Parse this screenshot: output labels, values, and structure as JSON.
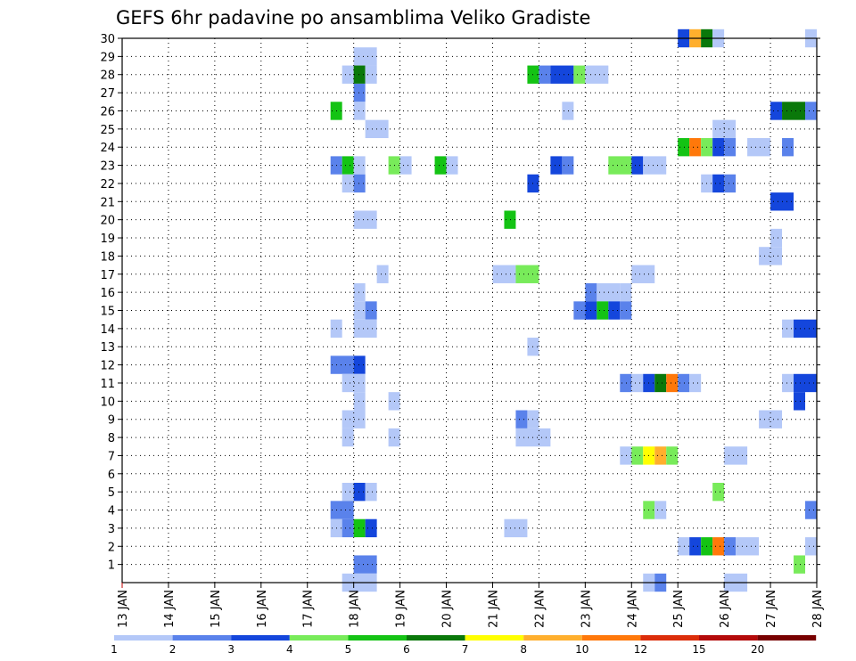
{
  "chart_data": {
    "type": "heatmap",
    "title": "GEFS 6hr padavine po ansamblima Veliko Gradiste",
    "x_tick_labels": [
      "13 JAN",
      "14 JAN",
      "15 JAN",
      "16 JAN",
      "17 JAN",
      "18 JAN",
      "19 JAN",
      "20 JAN",
      "21 JAN",
      "22 JAN",
      "23 JAN",
      "24 JAN",
      "25 JAN",
      "26 JAN",
      "27 JAN",
      "28 JAN"
    ],
    "x_range_days": [
      13,
      28
    ],
    "y_tick_labels": [
      "1",
      "2",
      "3",
      "4",
      "5",
      "6",
      "7",
      "8",
      "9",
      "10",
      "11",
      "12",
      "13",
      "14",
      "15",
      "16",
      "17",
      "18",
      "19",
      "20",
      "21",
      "22",
      "23",
      "24",
      "25",
      "26",
      "27",
      "28",
      "29",
      "30"
    ],
    "y_range_members": [
      0,
      30
    ],
    "grid": "dotted",
    "legend": {
      "placement": "bottom",
      "labels": [
        "1",
        "2",
        "3",
        "4",
        "5",
        "6",
        "7",
        "8",
        "10",
        "12",
        "15",
        "20"
      ],
      "colors": [
        "#b4c8f8",
        "#5a82eb",
        "#1446dc",
        "#78eb5a",
        "#14c314",
        "#0a780a",
        "#ffff00",
        "#ffaf2d",
        "#ff780a",
        "#dc2d0a",
        "#b40a0a",
        "#780000"
      ]
    },
    "cell_value_note": "each cell: [member_row, x_day_start, x_day_end, color_class 0-11]",
    "cells": [
      [
        30,
        25.0,
        25.25,
        2
      ],
      [
        30,
        25.25,
        25.5,
        7
      ],
      [
        30,
        25.5,
        25.75,
        5
      ],
      [
        30,
        25.75,
        26.0,
        0
      ],
      [
        30,
        27.75,
        28.0,
        0
      ],
      [
        29,
        18.0,
        18.5,
        0
      ],
      [
        28,
        17.75,
        18.0,
        0
      ],
      [
        28,
        18.0,
        18.25,
        5
      ],
      [
        28,
        18.25,
        18.5,
        0
      ],
      [
        28,
        21.75,
        22.0,
        4
      ],
      [
        28,
        22.0,
        22.25,
        1
      ],
      [
        28,
        22.25,
        22.75,
        2
      ],
      [
        28,
        22.75,
        23.0,
        3
      ],
      [
        28,
        23.0,
        23.5,
        0
      ],
      [
        27,
        18.0,
        18.25,
        1
      ],
      [
        26,
        17.5,
        17.75,
        4
      ],
      [
        26,
        18.0,
        18.25,
        0
      ],
      [
        26,
        22.5,
        22.75,
        0
      ],
      [
        26,
        27.0,
        27.25,
        2
      ],
      [
        26,
        27.25,
        27.75,
        5
      ],
      [
        26,
        27.75,
        28.0,
        1
      ],
      [
        25,
        18.25,
        18.75,
        0
      ],
      [
        25,
        25.75,
        26.25,
        0
      ],
      [
        24,
        25.0,
        25.25,
        4
      ],
      [
        24,
        25.25,
        25.5,
        8
      ],
      [
        24,
        25.5,
        25.75,
        3
      ],
      [
        24,
        25.75,
        26.0,
        2
      ],
      [
        24,
        26.0,
        26.25,
        1
      ],
      [
        24,
        26.5,
        27.0,
        0
      ],
      [
        24,
        27.25,
        27.5,
        1
      ],
      [
        23,
        17.5,
        17.75,
        1
      ],
      [
        23,
        17.75,
        18.0,
        4
      ],
      [
        23,
        18.0,
        18.25,
        0
      ],
      [
        23,
        18.75,
        19.0,
        3
      ],
      [
        23,
        19.0,
        19.25,
        0
      ],
      [
        23,
        19.75,
        20.0,
        4
      ],
      [
        23,
        20.0,
        20.25,
        0
      ],
      [
        23,
        22.25,
        22.5,
        2
      ],
      [
        23,
        22.5,
        22.75,
        1
      ],
      [
        23,
        23.5,
        24.0,
        3
      ],
      [
        23,
        24.0,
        24.25,
        2
      ],
      [
        23,
        24.25,
        24.75,
        0
      ],
      [
        22,
        17.75,
        18.0,
        0
      ],
      [
        22,
        18.0,
        18.25,
        1
      ],
      [
        22,
        21.75,
        22.0,
        2
      ],
      [
        22,
        25.5,
        25.75,
        0
      ],
      [
        22,
        25.75,
        26.0,
        2
      ],
      [
        22,
        26.0,
        26.25,
        1
      ],
      [
        21,
        27.0,
        27.5,
        2
      ],
      [
        20,
        18.0,
        18.5,
        0
      ],
      [
        20,
        21.25,
        21.5,
        4
      ],
      [
        19,
        27.0,
        27.25,
        0
      ],
      [
        18,
        26.75,
        27.25,
        0
      ],
      [
        17,
        18.5,
        18.75,
        0
      ],
      [
        17,
        21.0,
        21.5,
        0
      ],
      [
        17,
        21.5,
        22.0,
        3
      ],
      [
        17,
        24.0,
        24.5,
        0
      ],
      [
        16,
        18.0,
        18.25,
        0
      ],
      [
        16,
        23.0,
        23.25,
        1
      ],
      [
        16,
        23.25,
        23.75,
        0
      ],
      [
        16,
        23.75,
        24.0,
        0
      ],
      [
        15,
        18.0,
        18.25,
        0
      ],
      [
        15,
        18.25,
        18.5,
        1
      ],
      [
        15,
        22.75,
        23.0,
        1
      ],
      [
        15,
        23.0,
        23.25,
        2
      ],
      [
        15,
        23.25,
        23.5,
        4
      ],
      [
        15,
        23.5,
        23.75,
        2
      ],
      [
        15,
        23.75,
        24.0,
        1
      ],
      [
        14,
        17.5,
        17.75,
        0
      ],
      [
        14,
        18.0,
        18.5,
        0
      ],
      [
        14,
        27.25,
        27.5,
        0
      ],
      [
        14,
        27.5,
        28.0,
        2
      ],
      [
        13,
        21.75,
        22.0,
        0
      ],
      [
        12,
        17.5,
        18.0,
        1
      ],
      [
        12,
        18.0,
        18.25,
        2
      ],
      [
        11,
        17.75,
        18.25,
        0
      ],
      [
        11,
        23.75,
        24.0,
        1
      ],
      [
        11,
        24.0,
        24.25,
        0
      ],
      [
        11,
        24.25,
        24.5,
        2
      ],
      [
        11,
        24.5,
        24.75,
        5
      ],
      [
        11,
        24.75,
        25.0,
        8
      ],
      [
        11,
        25.0,
        25.25,
        1
      ],
      [
        11,
        25.25,
        25.5,
        0
      ],
      [
        11,
        27.25,
        27.5,
        0
      ],
      [
        11,
        27.5,
        28.0,
        2
      ],
      [
        10,
        18.0,
        18.25,
        0
      ],
      [
        10,
        18.75,
        19.0,
        0
      ],
      [
        10,
        27.5,
        27.75,
        2
      ],
      [
        9,
        17.75,
        18.25,
        0
      ],
      [
        9,
        21.5,
        21.75,
        1
      ],
      [
        9,
        21.75,
        22.0,
        0
      ],
      [
        9,
        26.75,
        27.25,
        0
      ],
      [
        8,
        17.75,
        18.0,
        0
      ],
      [
        8,
        18.75,
        19.0,
        0
      ],
      [
        8,
        21.5,
        22.25,
        0
      ],
      [
        7,
        23.75,
        24.0,
        0
      ],
      [
        7,
        24.0,
        24.25,
        3
      ],
      [
        7,
        24.25,
        24.5,
        6
      ],
      [
        7,
        24.5,
        24.75,
        7
      ],
      [
        7,
        24.75,
        25.0,
        3
      ],
      [
        7,
        26.0,
        26.5,
        0
      ],
      [
        5,
        17.75,
        18.0,
        0
      ],
      [
        5,
        18.0,
        18.25,
        2
      ],
      [
        5,
        18.25,
        18.5,
        0
      ],
      [
        5,
        25.75,
        26.0,
        3
      ],
      [
        4,
        17.5,
        18.0,
        1
      ],
      [
        4,
        24.25,
        24.5,
        3
      ],
      [
        4,
        24.5,
        24.75,
        0
      ],
      [
        4,
        27.75,
        28.0,
        1
      ],
      [
        3,
        17.5,
        17.75,
        0
      ],
      [
        3,
        17.75,
        18.0,
        1
      ],
      [
        3,
        18.0,
        18.25,
        4
      ],
      [
        3,
        18.25,
        18.5,
        2
      ],
      [
        3,
        21.25,
        21.75,
        0
      ],
      [
        2,
        25.0,
        25.25,
        0
      ],
      [
        2,
        25.25,
        25.5,
        2
      ],
      [
        2,
        25.5,
        25.75,
        4
      ],
      [
        2,
        25.75,
        26.0,
        8
      ],
      [
        2,
        26.0,
        26.25,
        1
      ],
      [
        2,
        26.25,
        26.75,
        0
      ],
      [
        2,
        27.75,
        28.0,
        0
      ],
      [
        1,
        18.0,
        18.5,
        1
      ],
      [
        1,
        27.5,
        27.75,
        3
      ],
      [
        0,
        17.75,
        18.5,
        0
      ],
      [
        0,
        24.25,
        24.5,
        0
      ],
      [
        0,
        24.5,
        24.75,
        1
      ],
      [
        0,
        26.0,
        26.5,
        0
      ]
    ]
  }
}
